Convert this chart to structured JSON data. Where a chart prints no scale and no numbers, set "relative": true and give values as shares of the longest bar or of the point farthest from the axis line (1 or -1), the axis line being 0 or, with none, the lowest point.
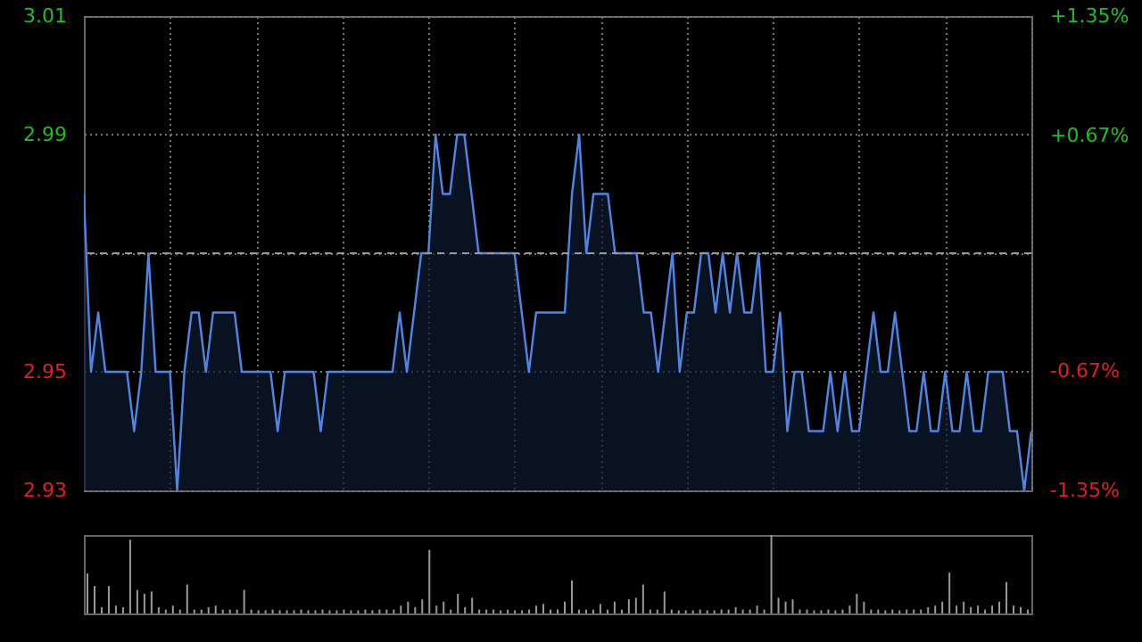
{
  "chart_data": [
    {
      "type": "area",
      "categories": [
        null,
        null,
        null,
        null,
        null,
        null,
        null,
        null,
        null,
        null,
        null,
        null,
        null,
        null,
        null,
        null,
        null,
        null,
        null,
        null,
        null,
        null,
        null,
        null,
        null,
        null,
        null,
        null,
        null,
        null,
        null,
        null,
        null,
        null,
        null,
        null,
        null,
        null,
        null,
        null,
        null,
        null,
        null,
        null,
        null,
        null,
        null,
        null,
        null,
        null,
        null,
        null,
        null,
        null,
        null,
        null,
        null,
        null,
        null,
        null,
        null,
        null,
        null,
        null,
        null,
        null,
        null,
        null,
        null,
        null,
        null,
        null,
        null,
        null,
        null,
        null,
        null,
        null,
        null,
        null,
        null,
        null,
        null,
        null,
        null,
        null,
        null,
        null,
        null,
        null,
        null,
        null,
        null,
        null,
        null,
        null,
        null,
        null,
        null,
        null,
        null,
        null,
        null,
        null,
        null,
        null,
        null,
        null,
        null,
        null,
        null,
        null,
        null,
        null,
        null,
        null,
        null,
        null,
        null,
        null,
        null,
        null,
        null,
        null,
        null,
        null,
        null,
        null,
        null,
        null,
        null,
        null,
        null
      ],
      "series": [
        {
          "color": "#4f86e6",
          "values": [
            2.98,
            2.95,
            2.96,
            2.95,
            2.95,
            2.95,
            2.95,
            2.94,
            2.95,
            2.97,
            2.95,
            2.95,
            2.95,
            2.93,
            2.95,
            2.96,
            2.96,
            2.95,
            2.96,
            2.96,
            2.96,
            2.96,
            2.95,
            2.95,
            2.95,
            2.95,
            2.95,
            2.94,
            2.95,
            2.95,
            2.95,
            2.95,
            2.95,
            2.94,
            2.95,
            2.95,
            2.95,
            2.95,
            2.95,
            2.95,
            2.95,
            2.95,
            2.95,
            2.95,
            2.96,
            2.95,
            2.96,
            2.97,
            2.97,
            2.99,
            2.98,
            2.98,
            2.99,
            2.99,
            2.98,
            2.97,
            2.97,
            2.97,
            2.97,
            2.97,
            2.97,
            2.96,
            2.95,
            2.96,
            2.96,
            2.96,
            2.96,
            2.96,
            2.98,
            2.99,
            2.97,
            2.98,
            2.98,
            2.98,
            2.97,
            2.97,
            2.97,
            2.97,
            2.96,
            2.96,
            2.95,
            2.96,
            2.97,
            2.95,
            2.96,
            2.96,
            2.97,
            2.97,
            2.96,
            2.97,
            2.96,
            2.97,
            2.96,
            2.96,
            2.97,
            2.95,
            2.95,
            2.96,
            2.94,
            2.95,
            2.95,
            2.94,
            2.94,
            2.94,
            2.95,
            2.94,
            2.95,
            2.94,
            2.94,
            2.95,
            2.96,
            2.95,
            2.95,
            2.96,
            2.95,
            2.94,
            2.94,
            2.95,
            2.94,
            2.94,
            2.95,
            2.94,
            2.94,
            2.95,
            2.94,
            2.94,
            2.95,
            2.95,
            2.95,
            2.94,
            2.94,
            2.93,
            2.94
          ]
        }
      ],
      "ylim": [
        2.93,
        3.01
      ],
      "yticks": [
        2.93,
        2.95,
        {
          "value": 2.97,
          "label": null
        },
        2.99,
        3.01
      ],
      "y2lim": [
        -1.35,
        1.35
      ],
      "y2ticks": [
        {
          "value": -1.35,
          "label": "-1.35%"
        },
        {
          "value": -0.67,
          "label": "-0.67%"
        },
        {
          "value": 0.67,
          "label": "+0.67%"
        },
        {
          "value": 1.35,
          "label": "+1.35%"
        }
      ],
      "ref_lines": [
        {
          "axis": "y",
          "value": 2.97,
          "line_style": "dashed",
          "color": "#999999"
        }
      ],
      "grid": true
    },
    {
      "type": "bar",
      "relative": true,
      "categories": [
        null,
        null,
        null,
        null,
        null,
        null,
        null,
        null,
        null,
        null,
        null,
        null,
        null,
        null,
        null,
        null,
        null,
        null,
        null,
        null,
        null,
        null,
        null,
        null,
        null,
        null,
        null,
        null,
        null,
        null,
        null,
        null,
        null,
        null,
        null,
        null,
        null,
        null,
        null,
        null,
        null,
        null,
        null,
        null,
        null,
        null,
        null,
        null,
        null,
        null,
        null,
        null,
        null,
        null,
        null,
        null,
        null,
        null,
        null,
        null,
        null,
        null,
        null,
        null,
        null,
        null,
        null,
        null,
        null,
        null,
        null,
        null,
        null,
        null,
        null,
        null,
        null,
        null,
        null,
        null,
        null,
        null,
        null,
        null,
        null,
        null,
        null,
        null,
        null,
        null,
        null,
        null,
        null,
        null,
        null,
        null,
        null,
        null,
        null,
        null,
        null,
        null,
        null,
        null,
        null,
        null,
        null,
        null,
        null,
        null,
        null,
        null,
        null,
        null,
        null,
        null,
        null,
        null,
        null,
        null,
        null,
        null,
        null,
        null,
        null,
        null,
        null,
        null,
        null,
        null,
        null,
        null,
        null
      ],
      "series": [
        {
          "color": "#9a9a9a",
          "values": [
            0.51,
            0.35,
            0.08,
            0.35,
            0.1,
            0.08,
            0.94,
            0.3,
            0.25,
            0.28,
            0.08,
            0.05,
            0.1,
            0.05,
            0.37,
            0.05,
            0.05,
            0.08,
            0.1,
            0.05,
            0.05,
            0.05,
            0.3,
            0.05,
            0.04,
            0.04,
            0.05,
            0.04,
            0.04,
            0.04,
            0.05,
            0.04,
            0.04,
            0.05,
            0.04,
            0.04,
            0.05,
            0.04,
            0.04,
            0.05,
            0.04,
            0.05,
            0.05,
            0.05,
            0.1,
            0.15,
            0.08,
            0.18,
            0.81,
            0.1,
            0.15,
            0.05,
            0.25,
            0.08,
            0.2,
            0.05,
            0.05,
            0.05,
            0.04,
            0.05,
            0.04,
            0.04,
            0.05,
            0.1,
            0.12,
            0.05,
            0.05,
            0.15,
            0.42,
            0.05,
            0.05,
            0.05,
            0.12,
            0.05,
            0.15,
            0.05,
            0.18,
            0.2,
            0.37,
            0.05,
            0.05,
            0.28,
            0.05,
            0.04,
            0.04,
            0.04,
            0.05,
            0.04,
            0.04,
            0.05,
            0.05,
            0.08,
            0.05,
            0.05,
            0.1,
            0.05,
            1,
            0.2,
            0.15,
            0.18,
            0.05,
            0.05,
            0.04,
            0.04,
            0.05,
            0.04,
            0.05,
            0.1,
            0.25,
            0.15,
            0.05,
            0.05,
            0.04,
            0.05,
            0.04,
            0.05,
            0.05,
            0.05,
            0.08,
            0.1,
            0.15,
            0.52,
            0.1,
            0.15,
            0.08,
            0.1,
            0.05,
            0.1,
            0.15,
            0.4,
            0.1,
            0.08,
            0.05
          ]
        }
      ]
    }
  ]
}
